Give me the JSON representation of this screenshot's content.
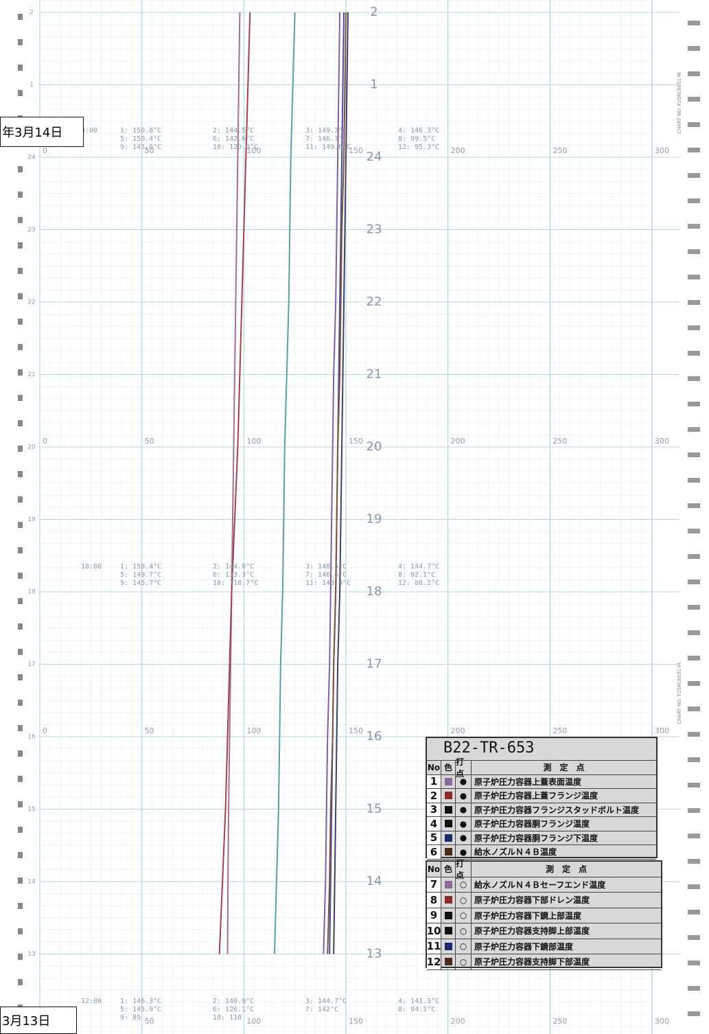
{
  "date_labels": {
    "top": "年3月14日",
    "bottom": "3月13日"
  },
  "chart_no": "CHART NO. F25RC6851-M",
  "chart_data": {
    "type": "line",
    "xlim": [
      0,
      300
    ],
    "xticks": [
      0,
      50,
      100,
      150,
      200,
      250,
      300
    ],
    "hours": [
      2,
      1,
      24,
      23,
      22,
      21,
      20,
      19,
      18,
      17,
      16,
      15,
      14,
      13
    ],
    "series": [
      {
        "color": "#a07090",
        "values": [
          98,
          97.5,
          97,
          96.5,
          96,
          95.5,
          95,
          94.5,
          94,
          93.5,
          93,
          92.5,
          92.2,
          92
        ]
      },
      {
        "color": "#a04050",
        "values": [
          103,
          102,
          101,
          100,
          99,
          98,
          97,
          95.5,
          94,
          93,
          92,
          91,
          89.5,
          88
        ]
      },
      {
        "color": "#5aa0a0",
        "values": [
          125,
          124,
          123,
          122.5,
          122,
          121,
          120,
          119.5,
          119,
          118,
          117.5,
          117,
          116,
          115
        ]
      },
      {
        "color": "#8060a0",
        "values": [
          147,
          146.5,
          146,
          145.5,
          145,
          144,
          143.5,
          143,
          142.5,
          142,
          141,
          140.5,
          140,
          139
        ]
      },
      {
        "color": "#4050a0",
        "values": [
          149,
          148.5,
          148,
          147.5,
          147,
          146.5,
          146,
          145.5,
          145,
          144,
          143.5,
          143,
          142.5,
          142
        ]
      },
      {
        "color": "#404060",
        "values": [
          151,
          150.5,
          150,
          149.5,
          149,
          148.5,
          148,
          147.5,
          147,
          146,
          145.5,
          145,
          144.5,
          144
        ]
      },
      {
        "color": "#805040",
        "values": [
          150,
          149.5,
          149,
          148,
          147.5,
          147,
          146,
          145.5,
          145,
          144,
          143.5,
          142.5,
          142,
          141
        ]
      }
    ]
  },
  "readouts": [
    {
      "time": "0:00",
      "columns": [
        [
          "1: 150.8°C",
          "5: 150.4°C",
          "9: 145.6°C"
        ],
        [
          "2: 144.5°C",
          "6: 142.6°C",
          "10: 120.0°C"
        ],
        [
          "3: 149.7°C",
          "7: 146.7°C",
          "11: 149.6°C"
        ],
        [
          "4: 146.3°C",
          "8: 99.5°C",
          "12: 95.3°C"
        ]
      ]
    },
    {
      "time": "18:00",
      "columns": [
        [
          "1: 150.4°C",
          "5: 149.7°C",
          "9: 145.7°C"
        ],
        [
          "2: 144.0°C",
          "6: 133.3°C",
          "10: 118.7°C"
        ],
        [
          "3: 148.5°C",
          "7: 146.6°C",
          "11: 148.4°C"
        ],
        [
          "4: 144.7°C",
          "8: 92.1°C",
          "12: 88.2°C"
        ]
      ]
    },
    {
      "time": "12:00",
      "columns": [
        [
          "1: 146.3°C",
          "5: 145.9°C",
          "9: 89"
        ],
        [
          "2: 140.9°C",
          "6: 126.1°C",
          "10: 110"
        ],
        [
          "3: 144.7°C",
          "7: 142°C"
        ],
        [
          "4: 141.3°C",
          "8: 94.1°C"
        ]
      ]
    }
  ],
  "legend": {
    "id": "B22-TR-653",
    "header": {
      "no": "No",
      "color": "色",
      "dot": "打点",
      "point": "測　定　点"
    },
    "rows": [
      {
        "no": "1",
        "color": "#8a6a9a",
        "dot": "●",
        "name": "原子炉圧力容器上蓋表面温度"
      },
      {
        "no": "2",
        "color": "#8a2a2a",
        "dot": "●",
        "name": "原子炉圧力容器上蓋フランジ温度"
      },
      {
        "no": "3",
        "color": "#111111",
        "dot": "●",
        "name": "原子炉圧力容器フランジスタッドボルト温度"
      },
      {
        "no": "4",
        "color": "#111111",
        "dot": "●",
        "name": "原子炉圧力容器胴フランジ温度"
      },
      {
        "no": "5",
        "color": "#1a2a6a",
        "dot": "●",
        "name": "原子炉圧力容器胴フランジ下温度"
      },
      {
        "no": "6",
        "color": "#4a2a1a",
        "dot": "●",
        "name": "給水ノズルＮ４Ｂ温度"
      },
      {
        "no": "7",
        "color": "#8a6a9a",
        "dot": "○",
        "name": "給水ノズルＮ４Ｂセーフエンド温度"
      },
      {
        "no": "8",
        "color": "#8a2a2a",
        "dot": "○",
        "name": "原子炉圧力容器下部ドレン温度"
      },
      {
        "no": "9",
        "color": "#111111",
        "dot": "○",
        "name": "原子炉圧力容器下鏡上部温度"
      },
      {
        "no": "10",
        "color": "#111111",
        "dot": "○",
        "name": "原子炉圧力容器支持脚上部温度"
      },
      {
        "no": "11",
        "color": "#1a2a6a",
        "dot": "○",
        "name": "原子炉圧力容器下鏡部温度"
      },
      {
        "no": "12",
        "color": "#4a2a1a",
        "dot": "○",
        "name": "原子炉圧力容器支持脚下部温度"
      }
    ]
  }
}
